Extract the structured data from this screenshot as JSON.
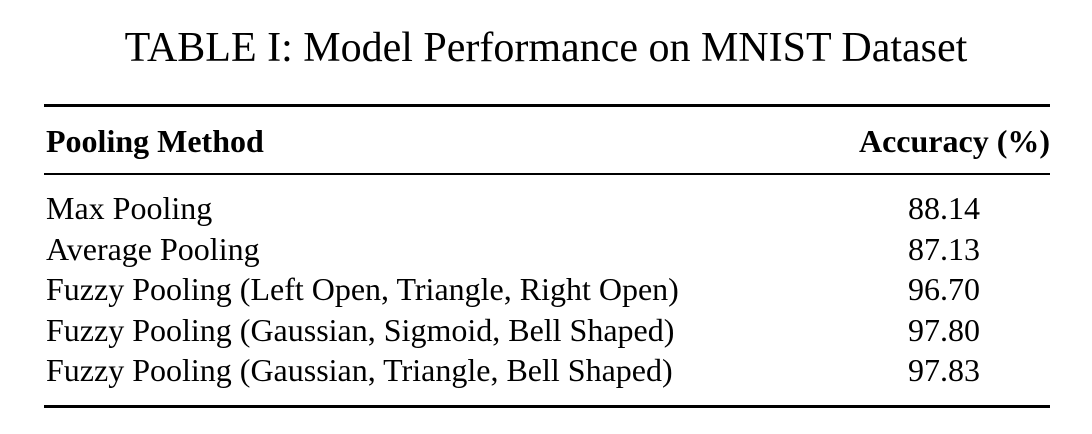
{
  "caption": "TABLE I: Model Performance on MNIST Dataset",
  "table": {
    "headers": [
      "Pooling Method",
      "Accuracy (%)"
    ],
    "rows": [
      [
        "Max Pooling",
        "88.14"
      ],
      [
        "Average Pooling",
        "87.13"
      ],
      [
        "Fuzzy Pooling (Left Open, Triangle, Right Open)",
        "96.70"
      ],
      [
        "Fuzzy Pooling (Gaussian, Sigmoid, Bell Shaped)",
        "97.80"
      ],
      [
        "Fuzzy Pooling (Gaussian, Triangle, Bell Shaped)",
        "97.83"
      ]
    ]
  }
}
